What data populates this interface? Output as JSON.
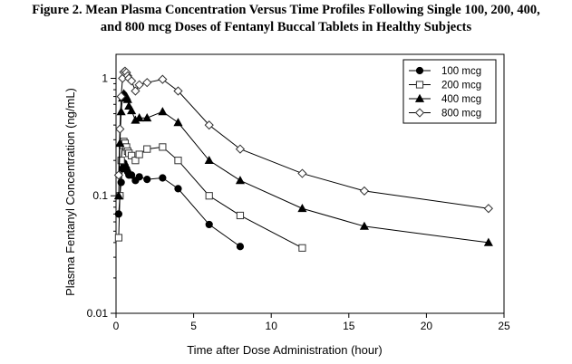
{
  "chart_data": {
    "type": "scatter",
    "title_lines": [
      "Figure 2. Mean Plasma Concentration Versus Time Profiles Following Single 100, 200, 400,",
      "and 800 mcg Doses of Fentanyl Buccal Tablets in Healthy Subjects"
    ],
    "xlabel": "Time after Dose Administration (hour)",
    "ylabel": "Plasma Fentanyl Concentration (ng/mL)",
    "xlim": [
      0,
      25
    ],
    "ylim": [
      0.01,
      1.6
    ],
    "y_scale": "log",
    "x_ticks": [
      0,
      5,
      10,
      15,
      20,
      25
    ],
    "y_ticks": [
      0.01,
      0.1,
      1
    ],
    "y_tick_labels": [
      "0.01",
      "0.1",
      "1"
    ],
    "grid": false,
    "legend_position": "top-right",
    "series": [
      {
        "name": "100 mcg",
        "marker": "filled-circle",
        "x": [
          0.17,
          0.25,
          0.33,
          0.42,
          0.5,
          0.58,
          0.67,
          0.75,
          0.83,
          1.0,
          1.25,
          1.5,
          2.0,
          3.0,
          4.0,
          6.0,
          8.0
        ],
        "y": [
          0.07,
          0.1,
          0.13,
          0.17,
          0.19,
          0.18,
          0.17,
          0.16,
          0.15,
          0.15,
          0.135,
          0.145,
          0.138,
          0.142,
          0.115,
          0.057,
          0.037
        ]
      },
      {
        "name": "200 mcg",
        "marker": "open-square",
        "x": [
          0.17,
          0.25,
          0.33,
          0.42,
          0.5,
          0.58,
          0.67,
          0.75,
          0.83,
          1.0,
          1.25,
          1.5,
          2.0,
          3.0,
          4.0,
          6.0,
          8.0,
          12.0
        ],
        "y": [
          0.044,
          0.1,
          0.2,
          0.27,
          0.29,
          0.28,
          0.26,
          0.24,
          0.23,
          0.22,
          0.2,
          0.225,
          0.25,
          0.26,
          0.2,
          0.1,
          0.068,
          0.036
        ]
      },
      {
        "name": "400 mcg",
        "marker": "filled-triangle",
        "x": [
          0.17,
          0.25,
          0.33,
          0.42,
          0.5,
          0.58,
          0.67,
          0.75,
          0.83,
          1.0,
          1.25,
          1.5,
          2.0,
          3.0,
          4.0,
          6.0,
          8.0,
          12.0,
          16.0,
          24.0
        ],
        "y": [
          0.1,
          0.28,
          0.52,
          0.68,
          0.74,
          0.72,
          0.7,
          0.66,
          0.58,
          0.53,
          0.44,
          0.46,
          0.46,
          0.52,
          0.42,
          0.2,
          0.135,
          0.078,
          0.055,
          0.04
        ]
      },
      {
        "name": "800 mcg",
        "marker": "open-diamond",
        "x": [
          0.17,
          0.25,
          0.33,
          0.42,
          0.5,
          0.58,
          0.67,
          0.75,
          0.83,
          1.0,
          1.25,
          1.5,
          2.0,
          3.0,
          4.0,
          6.0,
          8.0,
          12.0,
          16.0,
          24.0
        ],
        "y": [
          0.15,
          0.37,
          0.7,
          1.0,
          1.13,
          1.15,
          1.12,
          1.05,
          1.0,
          0.95,
          0.78,
          0.88,
          0.92,
          0.98,
          0.78,
          0.4,
          0.25,
          0.155,
          0.11,
          0.078
        ]
      }
    ]
  }
}
